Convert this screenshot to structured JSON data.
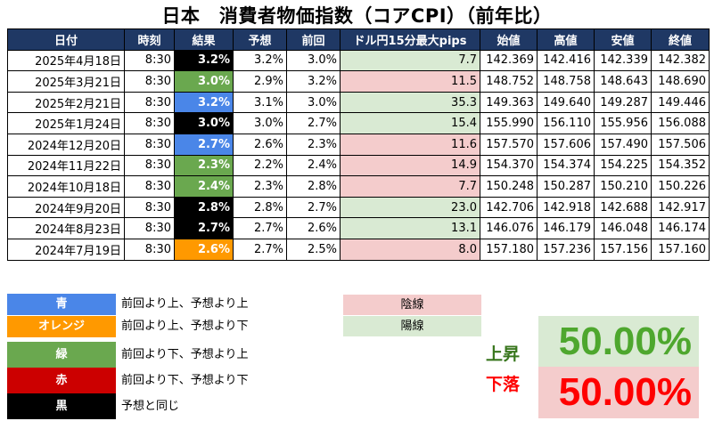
{
  "title": "日本　消費者物価指数（コアCPI）（前年比）",
  "headers": [
    "日付",
    "時刻",
    "結果",
    "予想",
    "前回",
    "ドル円15分最大pips",
    "始値",
    "高値",
    "安値",
    "終値"
  ],
  "colors": {
    "header_bg": "#1f3864",
    "blue": "#4a86e8",
    "orange": "#ff9900",
    "green": "#6aa84f",
    "red": "#cc0000",
    "black": "#000000",
    "bear_bg": "#f4cccc",
    "bull_bg": "#d9ead3",
    "rise_text": "#38761d",
    "fall_text": "#ff0000",
    "rise_big": "#4ea72e",
    "fall_big": "#ff0000",
    "rise_box": "#d9ead3",
    "fall_box": "#f4cccc"
  },
  "rows": [
    {
      "date": "2025年4月18日",
      "time": "8:30",
      "result": "3.2%",
      "forecast": "3.2%",
      "previous": "3.0%",
      "pips": "7.7",
      "open": "142.369",
      "high": "142.416",
      "low": "142.339",
      "close": "142.382",
      "result_color": "black",
      "candle": "bull"
    },
    {
      "date": "2025年3月21日",
      "time": "8:30",
      "result": "3.0%",
      "forecast": "2.9%",
      "previous": "3.2%",
      "pips": "11.5",
      "open": "148.752",
      "high": "148.758",
      "low": "148.643",
      "close": "148.690",
      "result_color": "green",
      "candle": "bear"
    },
    {
      "date": "2025年2月21日",
      "time": "8:30",
      "result": "3.2%",
      "forecast": "3.1%",
      "previous": "3.0%",
      "pips": "35.3",
      "open": "149.363",
      "high": "149.640",
      "low": "149.287",
      "close": "149.446",
      "result_color": "blue",
      "candle": "bull"
    },
    {
      "date": "2025年1月24日",
      "time": "8:30",
      "result": "3.0%",
      "forecast": "3.0%",
      "previous": "2.7%",
      "pips": "15.4",
      "open": "155.990",
      "high": "156.110",
      "low": "155.956",
      "close": "156.088",
      "result_color": "black",
      "candle": "bull"
    },
    {
      "date": "2024年12月20日",
      "time": "8:30",
      "result": "2.7%",
      "forecast": "2.6%",
      "previous": "2.3%",
      "pips": "11.6",
      "open": "157.570",
      "high": "157.606",
      "low": "157.490",
      "close": "157.506",
      "result_color": "blue",
      "candle": "bear"
    },
    {
      "date": "2024年11月22日",
      "time": "8:30",
      "result": "2.3%",
      "forecast": "2.2%",
      "previous": "2.4%",
      "pips": "14.9",
      "open": "154.370",
      "high": "154.374",
      "low": "154.225",
      "close": "154.352",
      "result_color": "green",
      "candle": "bear"
    },
    {
      "date": "2024年10月18日",
      "time": "8:30",
      "result": "2.4%",
      "forecast": "2.3%",
      "previous": "2.8%",
      "pips": "7.7",
      "open": "150.248",
      "high": "150.287",
      "low": "150.210",
      "close": "150.226",
      "result_color": "green",
      "candle": "bear"
    },
    {
      "date": "2024年9月20日",
      "time": "8:30",
      "result": "2.8%",
      "forecast": "2.8%",
      "previous": "2.7%",
      "pips": "23.0",
      "open": "142.706",
      "high": "142.918",
      "low": "142.688",
      "close": "142.917",
      "result_color": "black",
      "candle": "bull"
    },
    {
      "date": "2024年8月23日",
      "time": "8:30",
      "result": "2.7%",
      "forecast": "2.7%",
      "previous": "2.6%",
      "pips": "13.1",
      "open": "146.076",
      "high": "146.179",
      "low": "146.048",
      "close": "146.174",
      "result_color": "black",
      "candle": "bull"
    },
    {
      "date": "2024年7月19日",
      "time": "8:30",
      "result": "2.6%",
      "forecast": "2.7%",
      "previous": "2.5%",
      "pips": "8.0",
      "open": "157.180",
      "high": "157.236",
      "low": "157.156",
      "close": "157.160",
      "result_color": "orange",
      "candle": "bear"
    }
  ],
  "legend": [
    {
      "label": "青",
      "color": "blue",
      "desc": "前回より上、予想より上"
    },
    {
      "label": "オレンジ",
      "color": "orange",
      "desc": "前回より上、予想より下"
    },
    {
      "label": "緑",
      "color": "green",
      "desc": "前回より下、予想より上"
    },
    {
      "label": "赤",
      "color": "red",
      "desc": "前回より下、予想より下"
    },
    {
      "label": "黒",
      "color": "black",
      "desc": "予想と同じ"
    }
  ],
  "candle_legend": {
    "bear": "陰線",
    "bull": "陽線"
  },
  "stats": {
    "rise_label": "上昇",
    "rise_value": "50.00%",
    "fall_label": "下落",
    "fall_value": "50.00%"
  }
}
